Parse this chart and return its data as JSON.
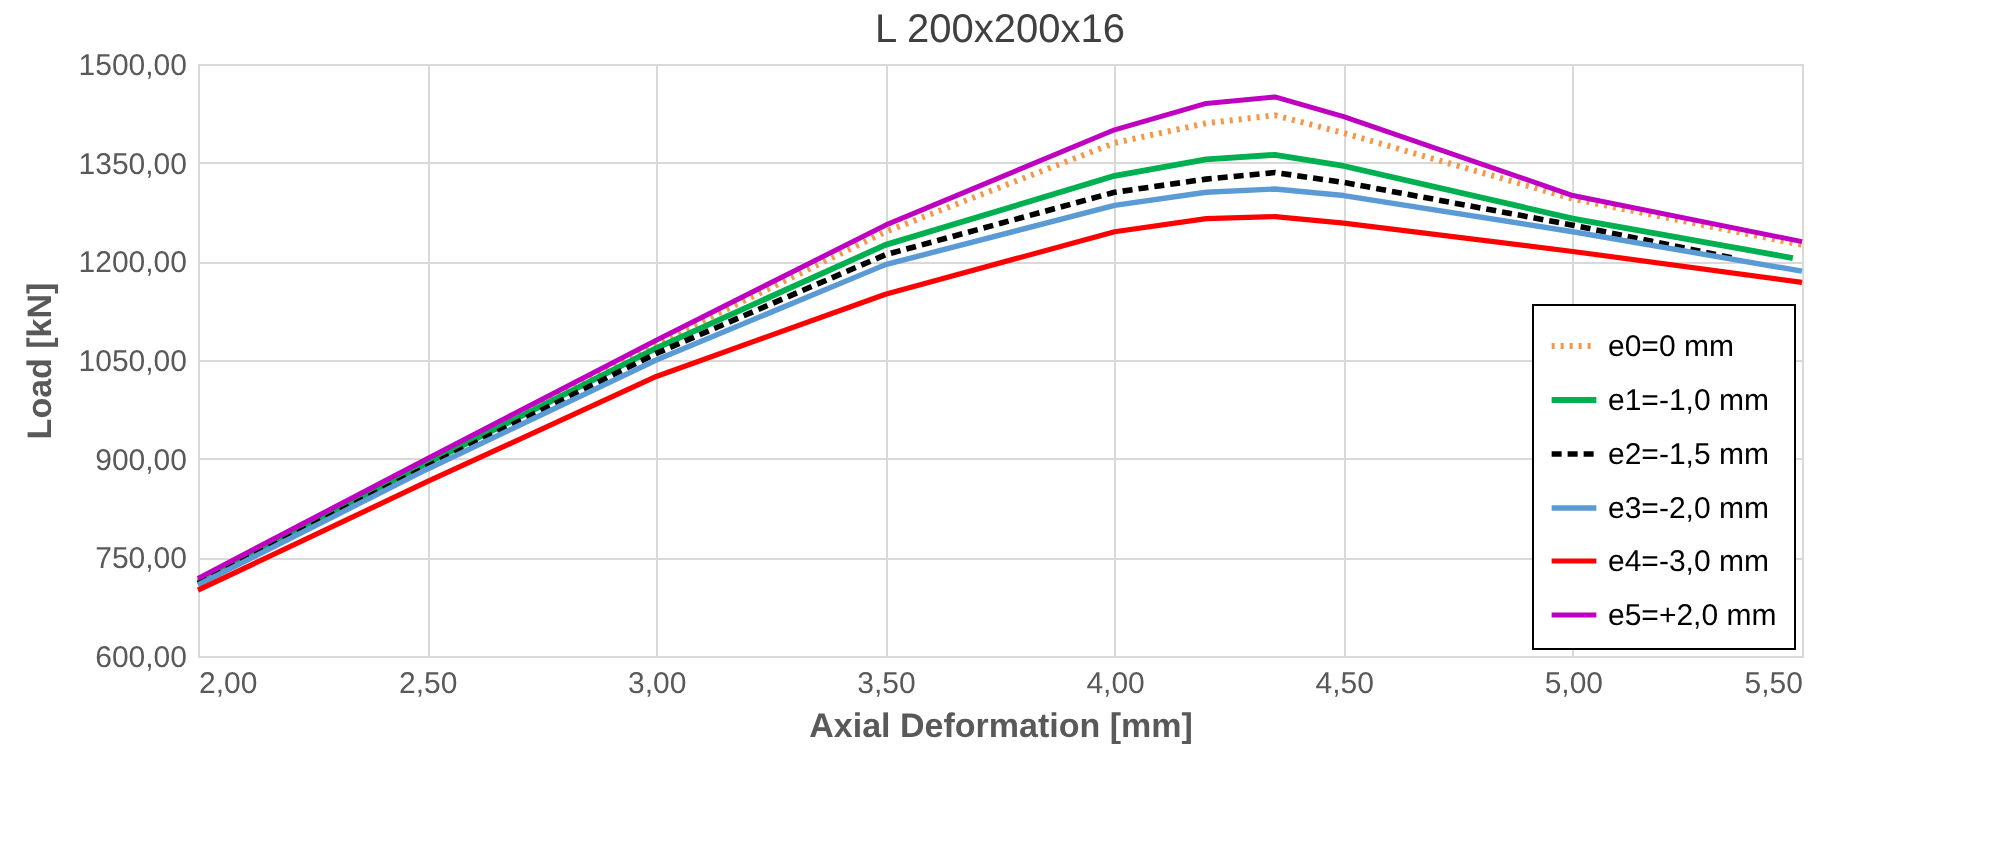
{
  "chart_data": {
    "type": "line",
    "title": "L 200x200x16",
    "xlabel": "Axial Deformation [mm]",
    "ylabel": "Load [kN]",
    "x": [
      2.0,
      2.5,
      3.0,
      3.5,
      4.0,
      4.2,
      4.35,
      4.5,
      5.0,
      5.5
    ],
    "series": [
      {
        "name": "e0=0 mm",
        "color": "#f79646",
        "line_style": "dotted",
        "values": [
          715,
          897,
          1075,
          1245,
          1380,
          1410,
          1422,
          1395,
          1295,
          1225
        ]
      },
      {
        "name": "e1=-1,0 mm",
        "color": "#00b050",
        "line_style": "solid",
        "x": [
          2.0,
          2.5,
          3.0,
          3.5,
          4.0,
          4.2,
          4.35,
          4.5,
          5.0,
          5.48
        ],
        "values": [
          712,
          893,
          1068,
          1225,
          1330,
          1355,
          1362,
          1345,
          1265,
          1205
        ]
      },
      {
        "name": "e2=-1,5 mm",
        "color": "#000000",
        "line_style": "dashed",
        "x": [
          2.0,
          2.5,
          3.0,
          3.5,
          4.0,
          4.2,
          4.35,
          4.5,
          5.0,
          5.35
        ],
        "values": [
          710,
          888,
          1060,
          1210,
          1305,
          1325,
          1335,
          1320,
          1255,
          1205
        ]
      },
      {
        "name": "e3=-2,0 mm",
        "color": "#5b9bd5",
        "line_style": "solid",
        "values": [
          708,
          884,
          1050,
          1195,
          1285,
          1305,
          1310,
          1300,
          1245,
          1185
        ]
      },
      {
        "name": "e4=-3,0 mm",
        "color": "#ff0000",
        "line_style": "solid",
        "values": [
          700,
          865,
          1025,
          1150,
          1245,
          1265,
          1268,
          1258,
          1215,
          1168
        ]
      },
      {
        "name": "e5=+2,0 mm",
        "color": "#c000c0",
        "line_style": "solid",
        "values": [
          718,
          900,
          1080,
          1255,
          1400,
          1440,
          1450,
          1420,
          1300,
          1230
        ]
      }
    ],
    "xlim": [
      2.0,
      5.5
    ],
    "ylim": [
      600,
      1500
    ],
    "xticks": [
      {
        "value": 2.0,
        "label": "2,00"
      },
      {
        "value": 2.5,
        "label": "2,50"
      },
      {
        "value": 3.0,
        "label": "3,00"
      },
      {
        "value": 3.5,
        "label": "3,50"
      },
      {
        "value": 4.0,
        "label": "4,00"
      },
      {
        "value": 4.5,
        "label": "4,50"
      },
      {
        "value": 5.0,
        "label": "5,00"
      },
      {
        "value": 5.5,
        "label": "5,50"
      }
    ],
    "yticks": [
      {
        "value": 600,
        "label": "600,00"
      },
      {
        "value": 750,
        "label": "750,00"
      },
      {
        "value": 900,
        "label": "900,00"
      },
      {
        "value": 1050,
        "label": "1050,00"
      },
      {
        "value": 1200,
        "label": "1200,00"
      },
      {
        "value": 1350,
        "label": "1350,00"
      },
      {
        "value": 1500,
        "label": "1500,00"
      }
    ],
    "grid": true,
    "legend": "bottom right",
    "marker": "none"
  }
}
